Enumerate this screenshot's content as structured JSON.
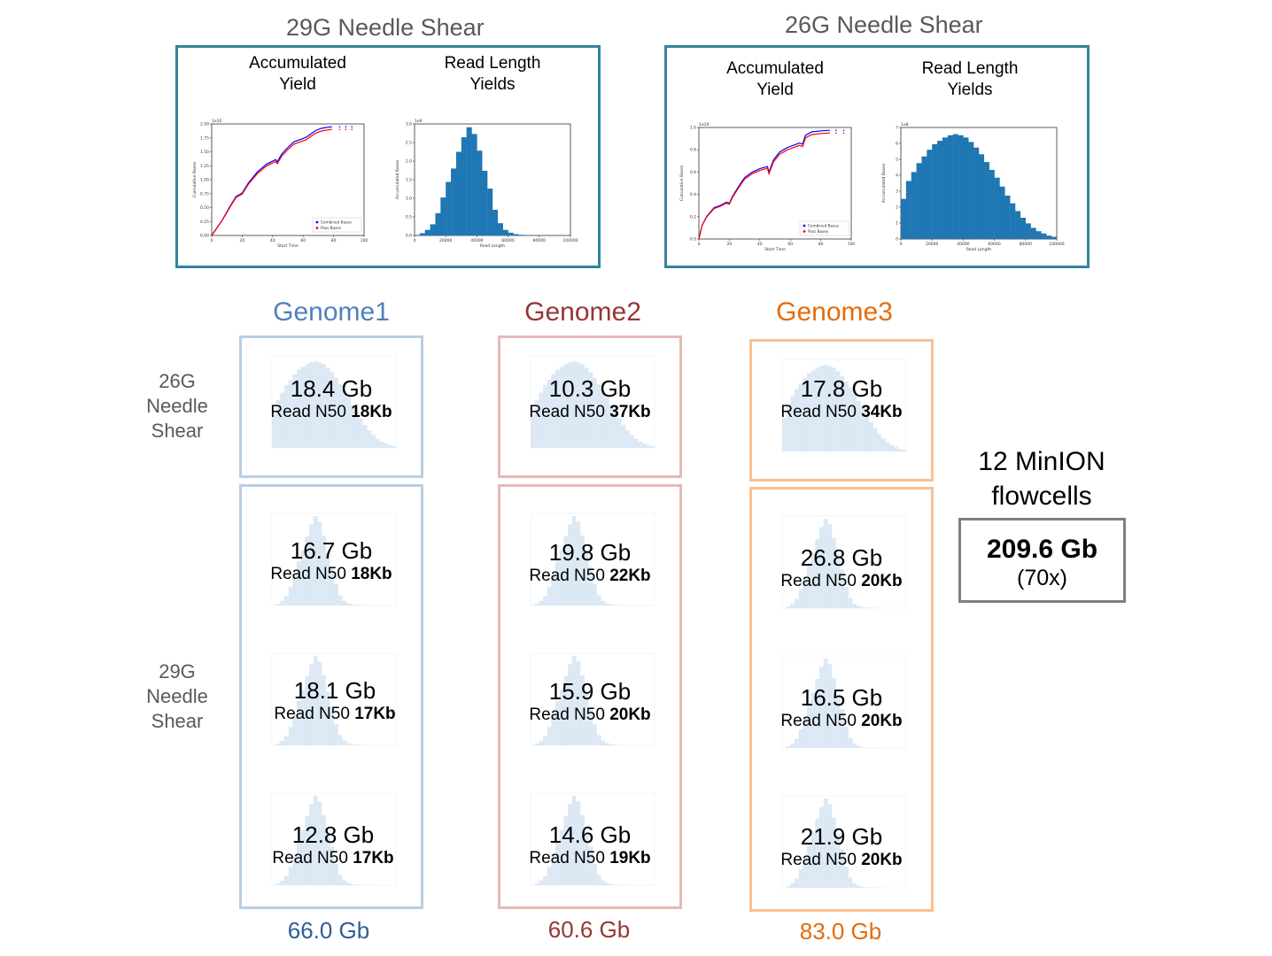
{
  "top_panels": [
    {
      "title": "29G Needle Shear",
      "yield_label": "Accumulated\nYield",
      "length_label": "Read Length\nYields",
      "yield_chart": {
        "exponent_label": "1e10",
        "y_ticks": [
          "0.00",
          "0.25",
          "0.50",
          "0.75",
          "1.00",
          "1.25",
          "1.50",
          "1.75",
          "2.00"
        ],
        "x_ticks": [
          "0",
          "20",
          "40",
          "60",
          "80",
          "100"
        ],
        "xlabel": "Start Time",
        "ylabel": "Cumulative Bases",
        "legend": [
          "Combined Bases",
          "Pass Bases"
        ]
      },
      "length_chart": {
        "exponent_label": "1e9",
        "y_ticks": [
          "0.0",
          "0.5",
          "1.0",
          "1.5",
          "2.0",
          "2.5",
          "3.0"
        ],
        "x_ticks": [
          "0",
          "20000",
          "40000",
          "60000",
          "80000",
          "100000"
        ],
        "xlabel": "Read Length",
        "ylabel": "Accumulated Bases"
      }
    },
    {
      "title": "26G Needle Shear",
      "yield_label": "Accumulated\nYield",
      "length_label": "Read Length\nYields",
      "yield_chart": {
        "exponent_label": "1e10",
        "y_ticks": [
          "0.0",
          "0.2",
          "0.4",
          "0.6",
          "0.8",
          "1.0"
        ],
        "x_ticks": [
          "0",
          "20",
          "40",
          "60",
          "80",
          "100"
        ],
        "xlabel": "Start Time",
        "ylabel": "Cumulative Bases",
        "legend": [
          "Combined Bases",
          "Pass Bases"
        ]
      },
      "length_chart": {
        "exponent_label": "1e8",
        "y_ticks": [
          "0",
          "1",
          "2",
          "3",
          "4",
          "5",
          "6",
          "7"
        ],
        "x_ticks": [
          "0",
          "20000",
          "40000",
          "60000",
          "80000",
          "100000"
        ],
        "xlabel": "Read Length",
        "ylabel": "Accumulated Bases"
      }
    }
  ],
  "row_labels": [
    "26G\nNeedle\nShear",
    "29G\nNeedle\nShear"
  ],
  "genomes": [
    {
      "name": "Genome1",
      "color": "#4f81bd",
      "box_color": "#b9cde5",
      "total_color": "#2e5f96",
      "top": {
        "gb": "18.4 Gb",
        "n50_prefix": "Read N50 ",
        "n50": "18Kb"
      },
      "bottom": [
        {
          "gb": "16.7 Gb",
          "n50_prefix": "Read N50 ",
          "n50": "18Kb"
        },
        {
          "gb": "18.1 Gb",
          "n50_prefix": "Read N50 ",
          "n50": "17Kb"
        },
        {
          "gb": "12.8 Gb",
          "n50_prefix": "Read N50 ",
          "n50": "17Kb"
        }
      ],
      "total": "66.0 Gb"
    },
    {
      "name": "Genome2",
      "color": "#953735",
      "box_color": "#e6b9b8",
      "total_color": "#953735",
      "top": {
        "gb": "10.3 Gb",
        "n50_prefix": "Read N50 ",
        "n50": "37Kb"
      },
      "bottom": [
        {
          "gb": "19.8 Gb",
          "n50_prefix": "Read N50 ",
          "n50": "22Kb"
        },
        {
          "gb": "15.9 Gb",
          "n50_prefix": "Read N50 ",
          "n50": "20Kb"
        },
        {
          "gb": "14.6 Gb",
          "n50_prefix": "Read N50 ",
          "n50": "19Kb"
        }
      ],
      "total": "60.6 Gb"
    },
    {
      "name": "Genome3",
      "color": "#e46c0a",
      "box_color": "#fac090",
      "total_color": "#e46c0a",
      "top": {
        "gb": "17.8 Gb",
        "n50_prefix": "Read N50 ",
        "n50": "34Kb"
      },
      "bottom": [
        {
          "gb": "26.8 Gb",
          "n50_prefix": "Read N50 ",
          "n50": "20Kb"
        },
        {
          "gb": "16.5 Gb",
          "n50_prefix": "Read N50 ",
          "n50": "20Kb"
        },
        {
          "gb": "21.9 Gb",
          "n50_prefix": "Read N50 ",
          "n50": "20Kb"
        }
      ],
      "total": "83.0 Gb"
    }
  ],
  "summary": {
    "title": "12 MinION\nflowcells",
    "total": "209.6 Gb",
    "coverage": "(70x)"
  },
  "colors": {
    "panel_border": "#31859c",
    "bar_fill": "#1f77b4",
    "combined": "#0000ff",
    "pass": "#ff0000",
    "ghost_hist": "#dce9f5"
  }
}
